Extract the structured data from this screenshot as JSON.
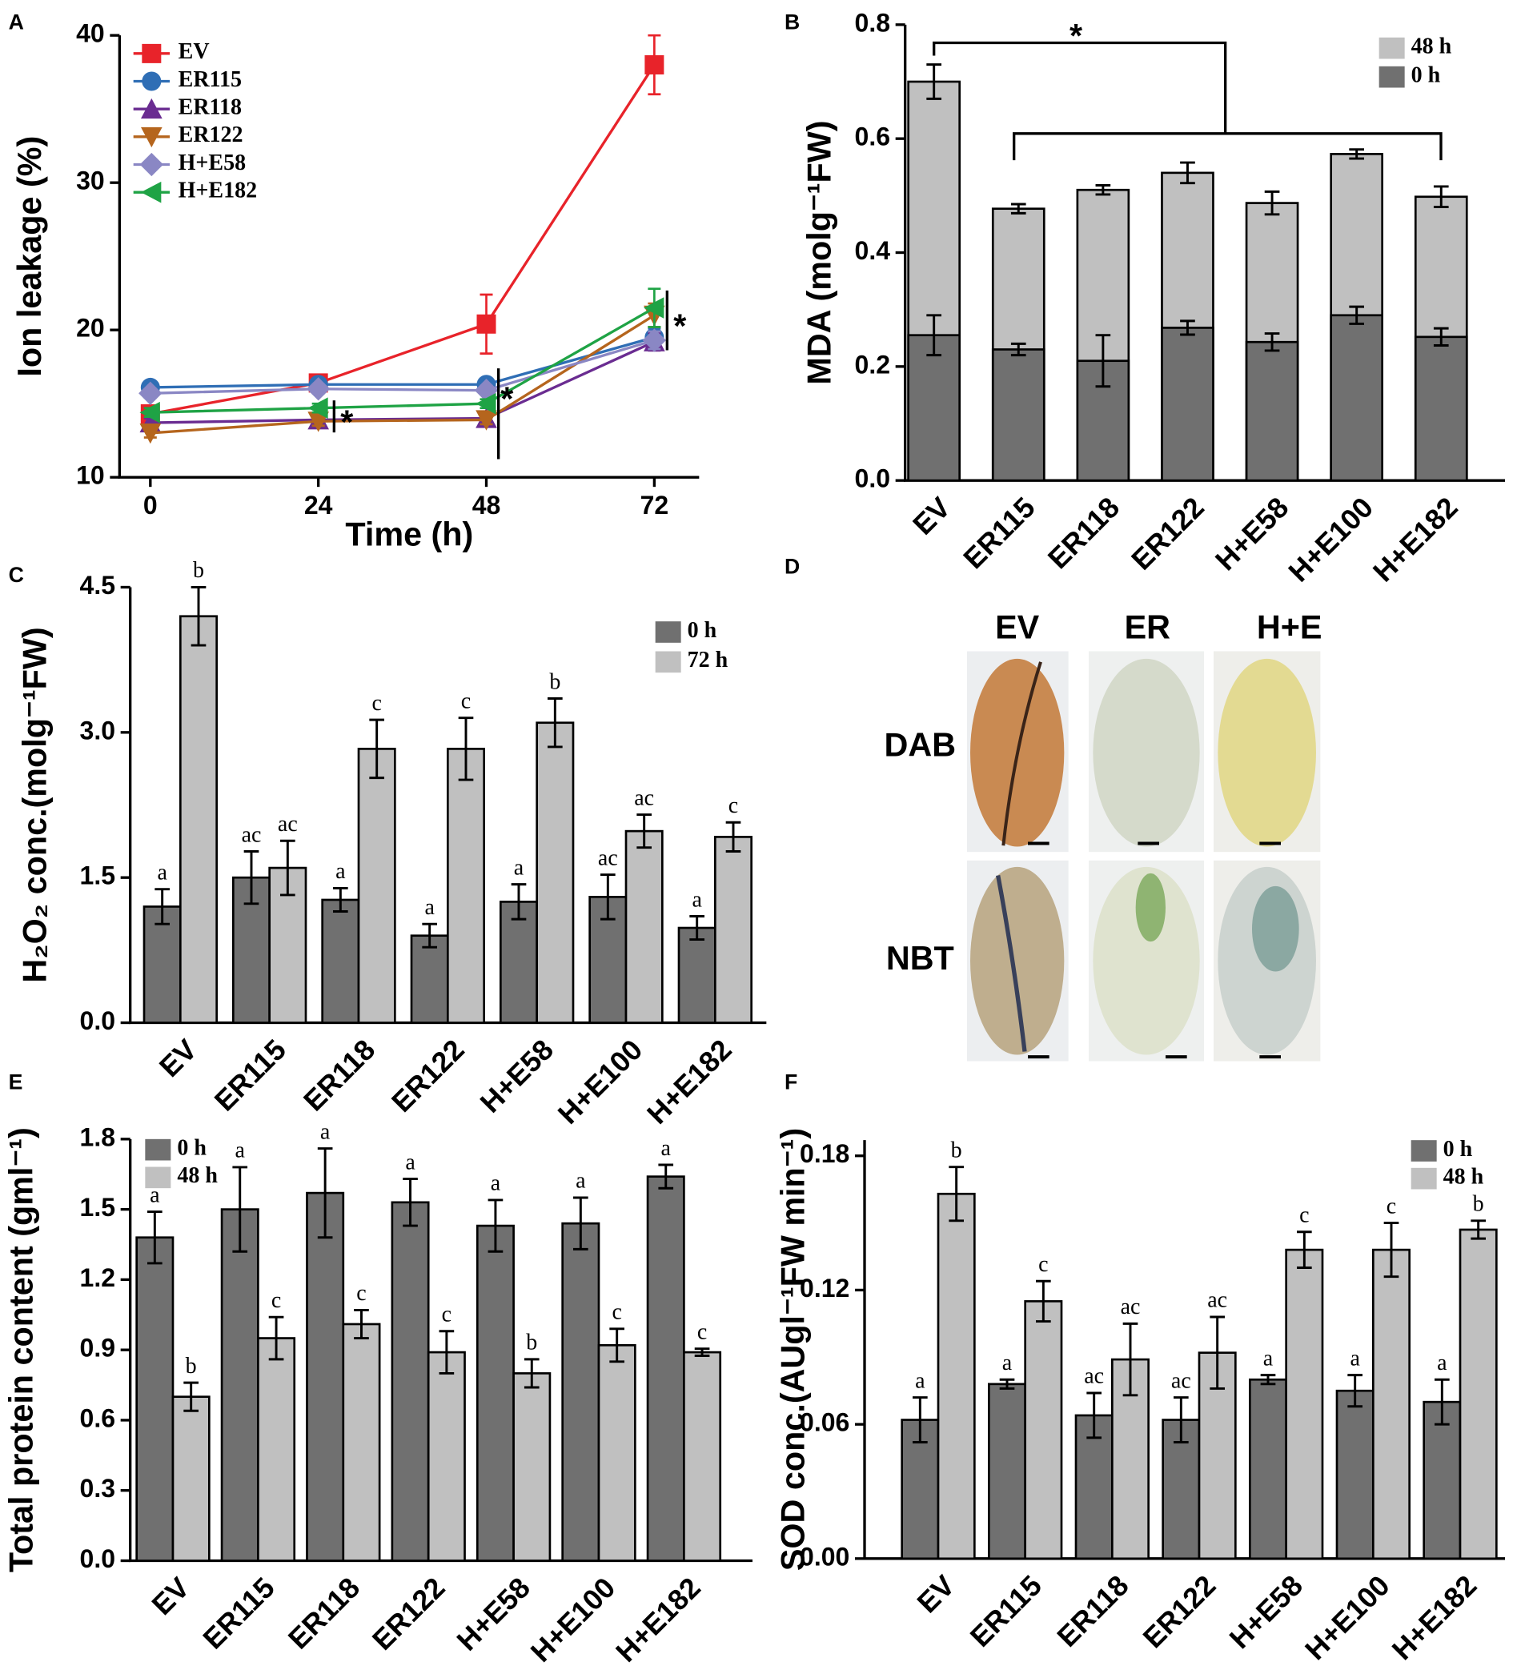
{
  "chart_data": [
    {
      "panel": "A",
      "type": "line",
      "ylabel": "Ion leakage (%)",
      "xlabel": "Time (h)",
      "x": [
        0,
        24,
        48,
        72
      ],
      "xlim": [
        -4.4,
        78.4
      ],
      "xticks": [
        0,
        24,
        48,
        72
      ],
      "ylim": [
        10,
        40
      ],
      "yticks": [
        10,
        20,
        30,
        40
      ],
      "legend": "upper left",
      "annotations": [
        "*",
        "*",
        "*"
      ],
      "series": [
        {
          "name": "EV",
          "color": "#e8232a",
          "marker": "square",
          "values": [
            14.3,
            16.4,
            20.4,
            38
          ],
          "errors": [
            0.5,
            0.5,
            2,
            2
          ]
        },
        {
          "name": "ER115",
          "color": "#2f6eb5",
          "marker": "circle",
          "values": [
            16.1,
            16.3,
            16.3,
            19.5
          ],
          "errors": [
            0.3,
            0.3,
            0.3,
            0.6
          ]
        },
        {
          "name": "ER118",
          "color": "#6a2c91",
          "marker": "triangle-up",
          "values": [
            13.7,
            13.9,
            14.0,
            19.2
          ],
          "errors": [
            0.3,
            0.3,
            0.3,
            0.6
          ]
        },
        {
          "name": "ER122",
          "color": "#b5651d",
          "marker": "triangle-down",
          "values": [
            13.0,
            13.8,
            13.9,
            21.0
          ],
          "errors": [
            0.3,
            0.3,
            0.3,
            0.8
          ]
        },
        {
          "name": "H+E58",
          "color": "#8a87c4",
          "marker": "diamond",
          "values": [
            15.7,
            16.0,
            15.9,
            19.3
          ],
          "errors": [
            0.3,
            0.3,
            0.3,
            0.6
          ]
        },
        {
          "name": "H+E182",
          "color": "#1fa345",
          "marker": "triangle-left",
          "values": [
            14.4,
            14.7,
            15.0,
            21.5
          ],
          "errors": [
            0.3,
            0.3,
            0.3,
            1.3
          ]
        }
      ]
    },
    {
      "panel": "B",
      "type": "bar",
      "barmode": "overlay",
      "ylabel": "MDA (molg⁻¹FW)",
      "categories": [
        "EV",
        "ER115",
        "ER118",
        "ER122",
        "H+E58",
        "H+E100",
        "H+E182"
      ],
      "ylim": [
        0,
        0.8
      ],
      "yticks": [
        {
          "value": 0,
          "label": "0.0"
        },
        0.2,
        0.4,
        0.6,
        0.8
      ],
      "legend": "upper right",
      "annotations": [
        "*"
      ],
      "series": [
        {
          "name": "48 h",
          "color": "#c0c0c0",
          "values": [
            0.7,
            0.477,
            0.51,
            0.54,
            0.487,
            0.573,
            0.498
          ],
          "errors": [
            0.03,
            0.008,
            0.008,
            0.018,
            0.02,
            0.008,
            0.018
          ]
        },
        {
          "name": "0 h",
          "color": "#707070",
          "values": [
            0.255,
            0.23,
            0.21,
            0.268,
            0.243,
            0.29,
            0.252
          ],
          "errors": [
            0.035,
            0.01,
            0.045,
            0.012,
            0.015,
            0.015,
            0.015
          ]
        }
      ]
    },
    {
      "panel": "C",
      "type": "bar",
      "barmode": "group",
      "ylabel": "H₂O₂ conc.(molg⁻¹FW)",
      "categories": [
        "EV",
        "ER115",
        "ER118",
        "ER122",
        "H+E58",
        "H+E100",
        "H+E182"
      ],
      "ylim": [
        0,
        4.5
      ],
      "yticks": [
        {
          "value": 0,
          "label": "0.0"
        },
        1.5,
        {
          "value": 3,
          "label": "3.0"
        },
        4.5
      ],
      "legend": "upper right",
      "series": [
        {
          "name": "0 h",
          "color": "#707070",
          "values": [
            1.2,
            1.5,
            1.27,
            0.9,
            1.25,
            1.3,
            0.98
          ],
          "errors": [
            0.18,
            0.27,
            0.12,
            0.12,
            0.18,
            0.23,
            0.12
          ],
          "letters": [
            "a",
            "ac",
            "a",
            "a",
            "a",
            "ac",
            "a"
          ]
        },
        {
          "name": "72 h",
          "color": "#c0c0c0",
          "values": [
            4.2,
            1.6,
            2.83,
            2.83,
            3.1,
            1.98,
            1.92
          ],
          "errors": [
            0.3,
            0.28,
            0.3,
            0.32,
            0.25,
            0.17,
            0.15
          ],
          "letters": [
            "b",
            "ac",
            "c",
            "c",
            "b",
            "ac",
            "c"
          ]
        }
      ]
    },
    {
      "panel": "E",
      "type": "bar",
      "barmode": "group",
      "ylabel": "Total protein content (gml⁻¹)",
      "categories": [
        "EV",
        "ER115",
        "ER118",
        "ER122",
        "H+E58",
        "H+E100",
        "H+E182"
      ],
      "ylim": [
        0,
        1.8
      ],
      "yticks": [
        {
          "value": 0,
          "label": "0.0"
        },
        0.3,
        0.6,
        0.9,
        1.2,
        1.5,
        1.8
      ],
      "legend": "upper left",
      "series": [
        {
          "name": "0 h",
          "color": "#707070",
          "values": [
            1.38,
            1.5,
            1.57,
            1.53,
            1.43,
            1.44,
            1.64
          ],
          "errors": [
            0.11,
            0.18,
            0.19,
            0.1,
            0.11,
            0.11,
            0.05
          ],
          "letters": [
            "a",
            "a",
            "a",
            "a",
            "a",
            "a",
            "a"
          ]
        },
        {
          "name": "48 h",
          "color": "#c0c0c0",
          "values": [
            0.7,
            0.95,
            1.01,
            0.89,
            0.8,
            0.92,
            0.89
          ],
          "errors": [
            0.06,
            0.09,
            0.06,
            0.09,
            0.06,
            0.07,
            0.015
          ],
          "letters": [
            "b",
            "c",
            "c",
            "c",
            "b",
            "c",
            "c"
          ]
        }
      ]
    },
    {
      "panel": "F",
      "type": "bar",
      "barmode": "group",
      "ylabel": "SOD conc.(AUgl⁻¹FW min⁻¹)",
      "categories": [
        "EV",
        "ER115",
        "ER118",
        "ER122",
        "H+E58",
        "H+E100",
        "H+E182"
      ],
      "ylim": [
        0,
        0.187
      ],
      "yticks": [
        {
          "value": 0,
          "label": "0.00"
        },
        0.06,
        0.12,
        0.18
      ],
      "legend": "upper right",
      "series": [
        {
          "name": "0 h",
          "color": "#707070",
          "values": [
            0.062,
            0.078,
            0.064,
            0.062,
            0.08,
            0.075,
            0.07
          ],
          "errors": [
            0.01,
            0.002,
            0.01,
            0.01,
            0.002,
            0.007,
            0.01
          ],
          "letters": [
            "a",
            "a",
            "ac",
            "ac",
            "a",
            "a",
            "a"
          ]
        },
        {
          "name": "48 h",
          "color": "#c0c0c0",
          "values": [
            0.163,
            0.115,
            0.089,
            0.092,
            0.138,
            0.138,
            0.147
          ],
          "errors": [
            0.012,
            0.009,
            0.016,
            0.016,
            0.008,
            0.012,
            0.004
          ],
          "letters": [
            "b",
            "c",
            "ac",
            "ac",
            "c",
            "c",
            "b"
          ]
        }
      ]
    }
  ],
  "image_panel": {
    "panel": "D",
    "columns": [
      "EV",
      "ER",
      "H+E"
    ],
    "rows": [
      "DAB",
      "NBT"
    ]
  }
}
